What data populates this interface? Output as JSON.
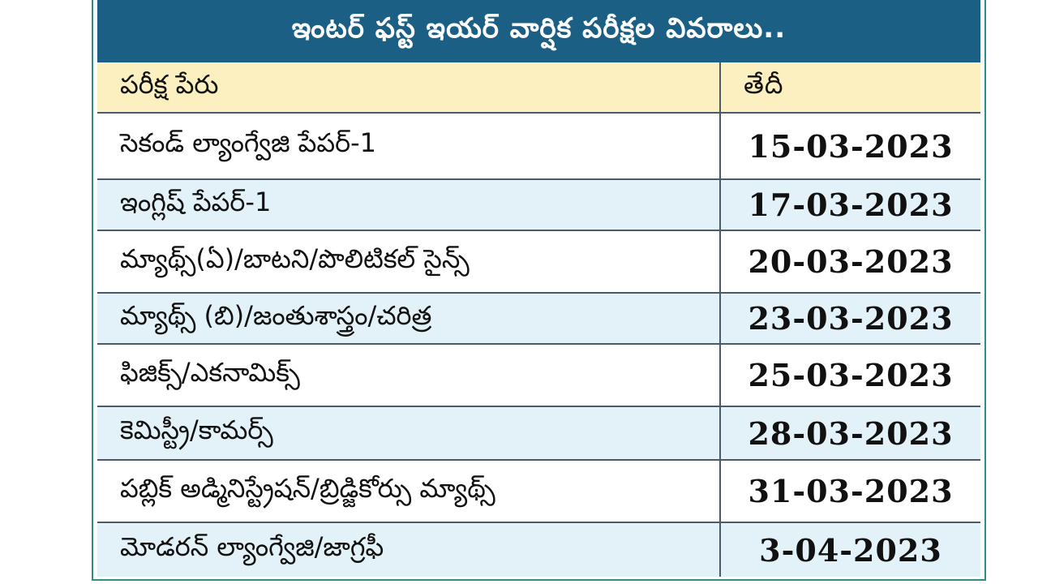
{
  "title": "ఇంటర్ ఫస్ట్ ఇయర్ వార్షిక పరీక్షల వివరాలు..",
  "table": {
    "headers": {
      "name": "పరీక్ష పేరు",
      "date": "తేదీ"
    },
    "rows": [
      {
        "name": "సెకండ్ ల్యాంగ్వేజి పేపర్-1",
        "date": "15-03-2023"
      },
      {
        "name": "ఇంగ్లిష్ పేపర్-1",
        "date": "17-03-2023"
      },
      {
        "name": "మ్యాథ్స్(ఏ)/బాటని/పొలిటికల్ సైన్స్",
        "date": "20-03-2023"
      },
      {
        "name": "మ్యాథ్స్ (బి)/జంతుశాస్త్రం/చరిత్ర",
        "date": "23-03-2023"
      },
      {
        "name": "ఫిజిక్స్/ఎకనామిక్స్",
        "date": "25-03-2023"
      },
      {
        "name": "కెమిస్ట్రీ/కామర్స్",
        "date": "28-03-2023"
      },
      {
        "name": "పబ్లిక్ అడ్మినిస్ట్రేషన్/బ్రిడ్జికోర్సు మ్యాథ్స్",
        "date": "31-03-2023"
      },
      {
        "name": "మోడరన్ ల్యాంగ్వేజి/జాగ్రఫీ",
        "date": "3-04-2023"
      }
    ]
  },
  "colors": {
    "title_bg": "#1b5f85",
    "header_bg": "#fdf0c0",
    "row_alt_bg": "#e2f2f8",
    "border": "#2c8f86"
  }
}
